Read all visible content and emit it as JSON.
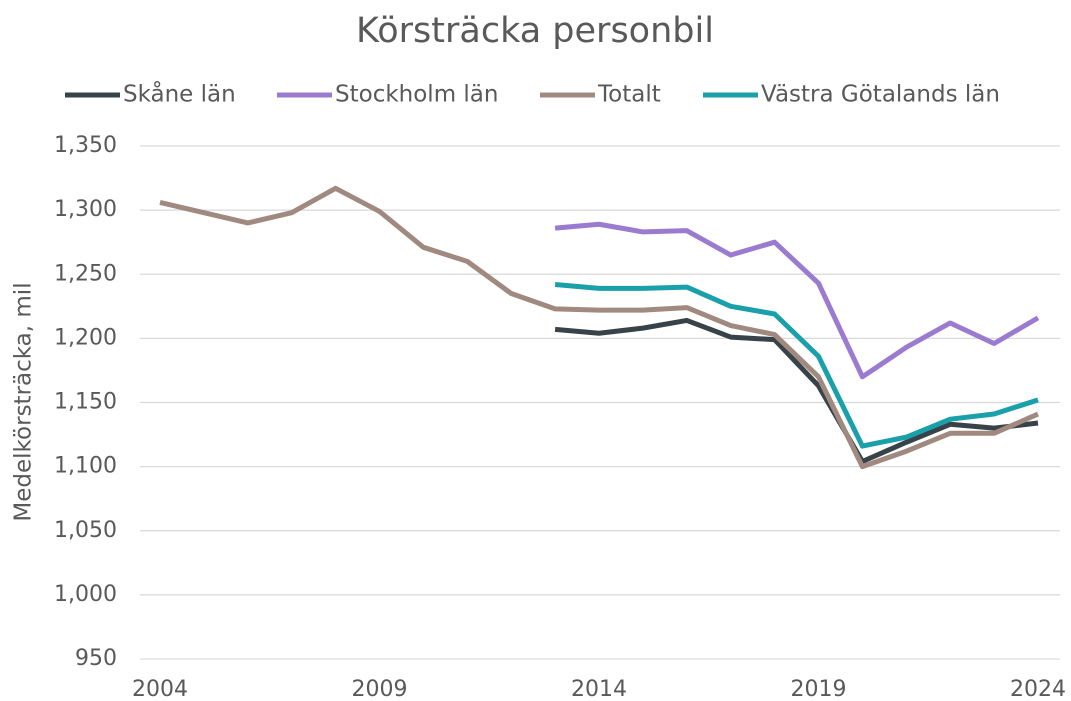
{
  "chart_data": {
    "type": "line",
    "title": "Körsträcka personbil",
    "ylabel": "Medelkörsträcka, mil",
    "x": [
      2004,
      2005,
      2006,
      2007,
      2008,
      2009,
      2010,
      2011,
      2012,
      2013,
      2014,
      2015,
      2016,
      2017,
      2018,
      2019,
      2020,
      2021,
      2022,
      2023,
      2024
    ],
    "series": [
      {
        "name": "Skåne län",
        "color": "#374249",
        "values": [
          null,
          null,
          null,
          null,
          null,
          null,
          null,
          null,
          null,
          1207,
          1204,
          1208,
          1214,
          1201,
          1199,
          1163,
          1104,
          1119,
          1133,
          1130,
          1134
        ]
      },
      {
        "name": "Stockholm län",
        "color": "#9b7bd0",
        "values": [
          null,
          null,
          null,
          null,
          null,
          null,
          null,
          null,
          null,
          1286,
          1289,
          1283,
          1284,
          1265,
          1275,
          1243,
          1170,
          1193,
          1212,
          1196,
          1216
        ]
      },
      {
        "name": "Totalt",
        "color": "#a08a80",
        "values": [
          1306,
          1298,
          1290,
          1298,
          1317,
          1299,
          1271,
          1260,
          1235,
          1223,
          1222,
          1222,
          1224,
          1210,
          1203,
          1170,
          1100,
          1112,
          1126,
          1126,
          1141
        ]
      },
      {
        "name": "Västra Götalands län",
        "color": "#1aa0ab",
        "values": [
          null,
          null,
          null,
          null,
          null,
          null,
          null,
          null,
          null,
          1242,
          1239,
          1239,
          1240,
          1225,
          1219,
          1186,
          1116,
          1123,
          1137,
          1141,
          1152
        ]
      }
    ],
    "xlim": [
      2004,
      2024
    ],
    "xticks": [
      2004,
      2009,
      2014,
      2019,
      2024
    ],
    "ylim": [
      950,
      1350
    ],
    "yticks": [
      950,
      {
        "value": 1000,
        "label": "1,000"
      },
      {
        "value": 1050,
        "label": "1,050"
      },
      {
        "value": 1100,
        "label": "1,100"
      },
      {
        "value": 1150,
        "label": "1,150"
      },
      {
        "value": 1200,
        "label": "1,200"
      },
      {
        "value": 1250,
        "label": "1,250"
      },
      {
        "value": 1300,
        "label": "1,300"
      },
      {
        "value": 1350,
        "label": "1,350"
      }
    ],
    "grid": true,
    "legend": "top"
  }
}
